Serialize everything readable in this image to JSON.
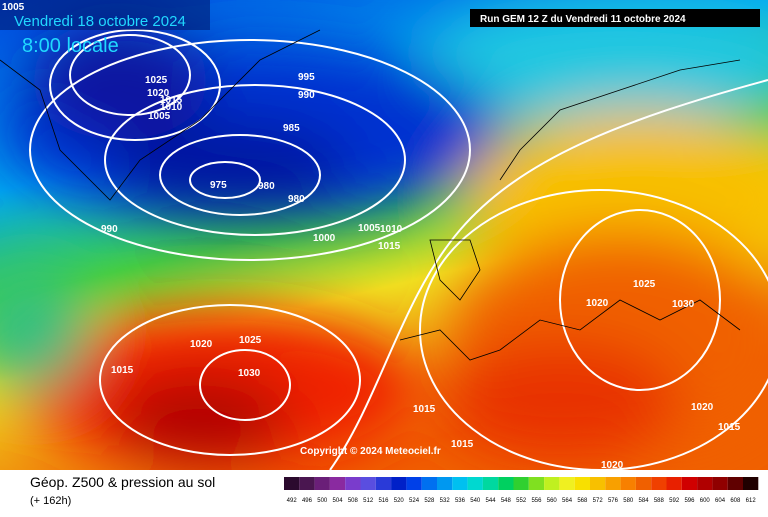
{
  "header": {
    "valid_date": "Vendredi 18 octobre 2024",
    "local_time": "8:00 locale",
    "run_info": "Run GEM 12 Z du Vendredi 11 octobre 2024"
  },
  "copyright": "Copyright © 2024 Meteociel.fr",
  "isobars": [
    1005,
    1025,
    1020,
    1015,
    1010,
    1005,
    995,
    990,
    985,
    975,
    980,
    980,
    990,
    1000,
    1005,
    1010,
    1015,
    1020,
    1025,
    1015,
    1030,
    1020,
    1025,
    1030,
    1015,
    1015,
    1020,
    1015,
    1020
  ],
  "footer": {
    "title": "Géop. Z500 & pression au sol",
    "lead": "(+ 162h)"
  },
  "colorbar": {
    "labels": [
      492,
      496,
      500,
      504,
      508,
      512,
      516,
      520,
      524,
      528,
      532,
      536,
      540,
      544,
      548,
      552,
      556,
      560,
      564,
      568,
      572,
      576,
      580,
      584,
      588,
      592,
      596,
      600,
      604,
      608,
      612
    ],
    "colors": [
      "#2b0a2e",
      "#4a1650",
      "#6a1f78",
      "#8a2aa0",
      "#7a3ccc",
      "#5a4ee0",
      "#2a3ad8",
      "#0020c8",
      "#0040e8",
      "#0070f0",
      "#0098f0",
      "#00c0f0",
      "#00d8d0",
      "#00d8a0",
      "#00d060",
      "#30d030",
      "#80e020",
      "#c0f020",
      "#f0f020",
      "#f8e000",
      "#f8c000",
      "#f8a000",
      "#f88000",
      "#f06000",
      "#f04000",
      "#e82000",
      "#d00000",
      "#b00000",
      "#900000",
      "#600000",
      "#200000"
    ]
  }
}
